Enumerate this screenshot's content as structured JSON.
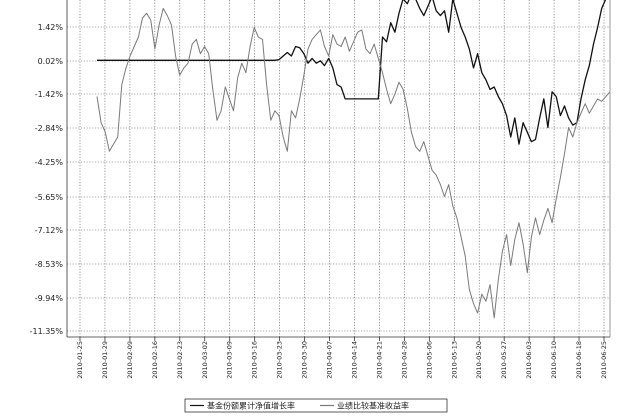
{
  "chart_data": {
    "type": "line",
    "title": "",
    "xlabel": "",
    "ylabel": "",
    "y_ticks": [
      "1.42%",
      "0.02%",
      "-1.42%",
      "-2.84%",
      "-4.25%",
      "-5.65%",
      "-7.12%",
      "-8.53%",
      "-9.94%",
      "-11.35%"
    ],
    "ylim": [
      -11.35,
      2.8
    ],
    "x_ticks": [
      "2010-01-25",
      "2010-01-29",
      "2010-02-09",
      "2010-02-16",
      "2010-02-23",
      "2010-03-02",
      "2010-03-09",
      "2010-03-16",
      "2010-03-23",
      "2010-03-30",
      "2010-04-07",
      "2010-04-14",
      "2010-04-21",
      "2010-04-28",
      "2010-05-06",
      "2010-05-13",
      "2010-05-20",
      "2010-05-27",
      "2010-06-03",
      "2010-06-10",
      "2010-06-18",
      "2010-06-25"
    ],
    "grid": true,
    "legend_position": "bottom",
    "series": [
      {
        "name": "基金份额累计净值增长率",
        "color": "#111111",
        "values": [
          0.02,
          0.02,
          0.02,
          0.02,
          0.02,
          0.02,
          0.02,
          0.02,
          0.02,
          0.02,
          0.02,
          0.02,
          0.02,
          0.02,
          0.02,
          0.02,
          0.02,
          0.02,
          0.02,
          0.02,
          0.02,
          0.02,
          0.02,
          0.02,
          0.02,
          0.02,
          0.02,
          0.02,
          0.02,
          0.02,
          0.02,
          0.02,
          0.02,
          0.02,
          0.02,
          0.02,
          0.02,
          0.02,
          0.02,
          0.02,
          0.02,
          0.02,
          0.02,
          0.02,
          0.05,
          0.2,
          0.35,
          0.2,
          0.6,
          0.55,
          0.3,
          -0.1,
          0.1,
          -0.1,
          0.0,
          -0.2,
          0.1,
          -0.3,
          -1.0,
          -1.1,
          -1.6,
          -1.6,
          -1.6,
          -1.6,
          -1.6,
          -1.6,
          -1.6,
          -1.6,
          -1.6,
          1.0,
          0.8,
          1.6,
          1.2,
          2.0,
          2.6,
          2.4,
          2.8,
          2.6,
          2.2,
          1.9,
          2.3,
          2.7,
          2.1,
          1.9,
          2.1,
          1.2,
          2.6,
          2.0,
          1.4,
          1.0,
          0.5,
          -0.3,
          0.3,
          -0.5,
          -0.8,
          -1.2,
          -1.1,
          -1.5,
          -1.8,
          -2.3,
          -3.2,
          -2.4,
          -3.5,
          -2.6,
          -3.0,
          -3.4,
          -3.3,
          -2.4,
          -1.6,
          -2.8,
          -1.3,
          -1.5,
          -2.3,
          -1.9,
          -2.4,
          -2.7,
          -2.6,
          -1.6,
          -0.8,
          -0.2,
          0.7,
          1.4,
          2.2,
          2.6,
          2.8
        ]
      },
      {
        "name": "业绩比较基准收益率",
        "color": "#7a7a7a",
        "values": [
          -1.5,
          -2.6,
          -3.0,
          -3.8,
          -3.5,
          -3.2,
          -1.0,
          -0.3,
          0.2,
          0.6,
          1.0,
          1.8,
          2.0,
          1.7,
          0.5,
          1.5,
          2.2,
          1.9,
          1.5,
          0.2,
          -0.6,
          -0.3,
          -0.1,
          0.7,
          0.9,
          0.3,
          0.6,
          0.3,
          -1.2,
          -2.5,
          -2.1,
          -1.1,
          -1.6,
          -2.1,
          -0.7,
          -0.1,
          -0.5,
          0.6,
          1.4,
          1.0,
          0.9,
          -1.0,
          -2.5,
          -2.1,
          -2.3,
          -3.2,
          -3.8,
          -2.1,
          -2.4,
          -1.6,
          -0.6,
          0.5,
          0.9,
          1.1,
          1.3,
          0.6,
          0.2,
          1.1,
          0.7,
          0.6,
          1.0,
          0.4,
          0.8,
          1.2,
          1.3,
          0.5,
          0.3,
          0.7,
          0.1,
          -0.5,
          -1.2,
          -1.8,
          -1.4,
          -0.9,
          -1.2,
          -2.0,
          -3.0,
          -3.6,
          -3.8,
          -3.4,
          -4.0,
          -4.6,
          -4.8,
          -5.2,
          -5.7,
          -5.2,
          -6.1,
          -6.6,
          -7.4,
          -8.2,
          -9.6,
          -10.2,
          -10.6,
          -9.8,
          -10.1,
          -9.4,
          -10.8,
          -9.2,
          -8.0,
          -7.3,
          -8.6,
          -7.5,
          -6.8,
          -7.7,
          -8.9,
          -7.4,
          -6.6,
          -7.3,
          -6.7,
          -6.2,
          -6.8,
          -5.8,
          -4.9,
          -3.9,
          -2.8,
          -3.2,
          -2.6,
          -2.2,
          -1.8,
          -2.2,
          -1.9,
          -1.6,
          -1.7,
          -1.5,
          -1.3
        ]
      }
    ]
  },
  "legend": {
    "items": [
      {
        "label": "基金份额累计净值增长率",
        "color": "#111111"
      },
      {
        "label": "业绩比较基准收益率",
        "color": "#7a7a7a"
      }
    ]
  }
}
